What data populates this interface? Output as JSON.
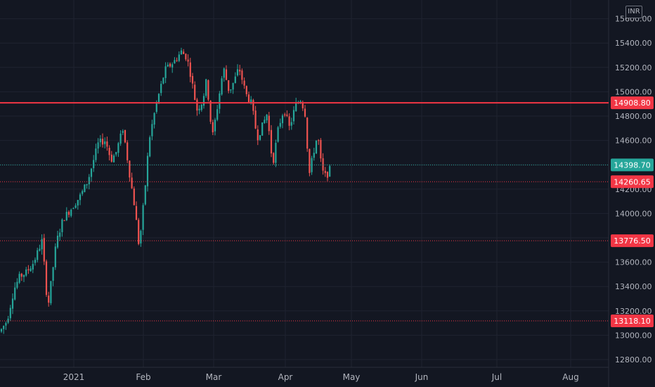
{
  "currency": "INR",
  "chart_data": {
    "type": "candlestick",
    "ylim": [
      12700,
      15600
    ],
    "y_ticks": [
      12800,
      13000,
      13200,
      13400,
      13600,
      13800,
      14000,
      14200,
      14400,
      14600,
      14800,
      15000,
      15200,
      15400,
      15600
    ],
    "y_tick_labels": [
      "12800.00",
      "13000.00",
      "13200.00",
      "13400.00",
      "13600.00",
      "13800.00",
      "14000.00",
      "14200.00",
      "14400.00",
      "14600.00",
      "14800.00",
      "15000.00",
      "15200.00",
      "15400.00",
      "15600.00"
    ],
    "x_labels": [
      "2021",
      "Feb",
      "Mar",
      "Apr",
      "May",
      "Jun",
      "Jul",
      "Aug"
    ],
    "colors": {
      "up": "#26a69a",
      "down": "#ef5350",
      "background": "#131722",
      "grid": "#1f2330",
      "axis_text": "#b2b5be"
    },
    "horizontal_lines": [
      {
        "label": "14908.80",
        "value": 14908.8,
        "style": "solid",
        "color": "#f23645"
      },
      {
        "label": "14398.70",
        "value": 14398.7,
        "style": "dotted",
        "color": "#26a69a"
      },
      {
        "label": "14260.65",
        "value": 14260.65,
        "style": "dotted",
        "color": "#f23645"
      },
      {
        "label": "13776.50",
        "value": 13776.5,
        "style": "dotted",
        "color": "#f23645"
      },
      {
        "label": "13118.10",
        "value": 13118.1,
        "style": "dotted",
        "color": "#f23645"
      }
    ],
    "anchors": [
      {
        "x": 0,
        "y": 13030
      },
      {
        "x": 10,
        "y": 13120
      },
      {
        "x": 20,
        "y": 13380
      },
      {
        "x": 28,
        "y": 13480
      },
      {
        "x": 38,
        "y": 13520
      },
      {
        "x": 48,
        "y": 13600
      },
      {
        "x": 60,
        "y": 13780
      },
      {
        "x": 68,
        "y": 13220
      },
      {
        "x": 72,
        "y": 13400
      },
      {
        "x": 80,
        "y": 13760
      },
      {
        "x": 90,
        "y": 13960
      },
      {
        "x": 100,
        "y": 14030
      },
      {
        "x": 115,
        "y": 14150
      },
      {
        "x": 125,
        "y": 14270
      },
      {
        "x": 140,
        "y": 14580
      },
      {
        "x": 150,
        "y": 14600
      },
      {
        "x": 158,
        "y": 14440
      },
      {
        "x": 165,
        "y": 14500
      },
      {
        "x": 175,
        "y": 14700
      },
      {
        "x": 185,
        "y": 14300
      },
      {
        "x": 192,
        "y": 14040
      },
      {
        "x": 198,
        "y": 13720
      },
      {
        "x": 206,
        "y": 14180
      },
      {
        "x": 212,
        "y": 14600
      },
      {
        "x": 222,
        "y": 14890
      },
      {
        "x": 235,
        "y": 15180
      },
      {
        "x": 248,
        "y": 15250
      },
      {
        "x": 258,
        "y": 15330
      },
      {
        "x": 266,
        "y": 15280
      },
      {
        "x": 272,
        "y": 15120
      },
      {
        "x": 280,
        "y": 14850
      },
      {
        "x": 288,
        "y": 14920
      },
      {
        "x": 294,
        "y": 15100
      },
      {
        "x": 302,
        "y": 14620
      },
      {
        "x": 310,
        "y": 14900
      },
      {
        "x": 318,
        "y": 15200
      },
      {
        "x": 326,
        "y": 15000
      },
      {
        "x": 334,
        "y": 15100
      },
      {
        "x": 340,
        "y": 15200
      },
      {
        "x": 350,
        "y": 14980
      },
      {
        "x": 358,
        "y": 14900
      },
      {
        "x": 366,
        "y": 14620
      },
      {
        "x": 372,
        "y": 14700
      },
      {
        "x": 380,
        "y": 14820
      },
      {
        "x": 388,
        "y": 14400
      },
      {
        "x": 396,
        "y": 14700
      },
      {
        "x": 404,
        "y": 14860
      },
      {
        "x": 412,
        "y": 14700
      },
      {
        "x": 420,
        "y": 14880
      },
      {
        "x": 428,
        "y": 14940
      },
      {
        "x": 434,
        "y": 14820
      },
      {
        "x": 440,
        "y": 14320
      },
      {
        "x": 446,
        "y": 14500
      },
      {
        "x": 452,
        "y": 14650
      },
      {
        "x": 458,
        "y": 14350
      },
      {
        "x": 464,
        "y": 14300
      },
      {
        "x": 470,
        "y": 14370
      }
    ]
  }
}
